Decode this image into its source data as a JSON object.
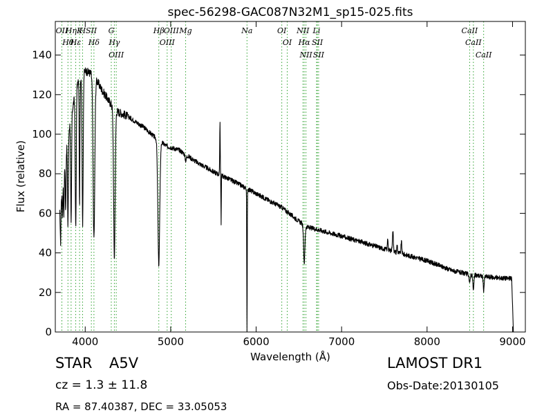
{
  "chart_data": {
    "type": "line",
    "title": "spec-56298-GAC087N32M1_sp15-025.fits",
    "xlabel": "Wavelength (Å)",
    "ylabel": "Flux (relative)",
    "xlim": [
      3650,
      9150
    ],
    "ylim": [
      0,
      157
    ],
    "x_ticks": [
      4000,
      5000,
      6000,
      7000,
      8000,
      9000
    ],
    "y_ticks": [
      0,
      20,
      40,
      60,
      80,
      100,
      120,
      140
    ],
    "grid": false,
    "line_color": "#000000",
    "marker_color": "#2ca02c",
    "spectral_lines": [
      {
        "label": "OII",
        "wavelength": 3727
      },
      {
        "label": "Hθ",
        "wavelength": 3798
      },
      {
        "label": "Hη",
        "wavelength": 3835
      },
      {
        "label": "Hε",
        "wavelength": 3889
      },
      {
        "label": "K",
        "wavelength": 3934
      },
      {
        "label": "H",
        "wavelength": 3969
      },
      {
        "label": "SII",
        "wavelength": 4072
      },
      {
        "label": "Hδ",
        "wavelength": 4102
      },
      {
        "label": "G",
        "wavelength": 4305
      },
      {
        "label": "Hγ",
        "wavelength": 4341
      },
      {
        "label": "OIII",
        "wavelength": 4363
      },
      {
        "label": "Hβ",
        "wavelength": 4861
      },
      {
        "label": "OIII",
        "wavelength": 4959
      },
      {
        "label": "OIII",
        "wavelength": 5007
      },
      {
        "label": "Mg",
        "wavelength": 5175
      },
      {
        "label": "Na",
        "wavelength": 5893
      },
      {
        "label": "OI",
        "wavelength": 6300
      },
      {
        "label": "OI",
        "wavelength": 6364
      },
      {
        "label": "NII",
        "wavelength": 6548
      },
      {
        "label": "Hα",
        "wavelength": 6563
      },
      {
        "label": "NII",
        "wavelength": 6583
      },
      {
        "label": "Li",
        "wavelength": 6707
      },
      {
        "label": "SII",
        "wavelength": 6716
      },
      {
        "label": "SII",
        "wavelength": 6731
      },
      {
        "label": "CaII",
        "wavelength": 8498
      },
      {
        "label": "CaII",
        "wavelength": 8542
      },
      {
        "label": "CaII",
        "wavelength": 8662
      }
    ],
    "continuum": [
      [
        3700,
        60
      ],
      [
        3800,
        100
      ],
      [
        3900,
        125
      ],
      [
        4000,
        132
      ],
      [
        4100,
        130
      ],
      [
        4200,
        122
      ],
      [
        4350,
        112
      ],
      [
        4500,
        109
      ],
      [
        4600,
        106
      ],
      [
        4700,
        103
      ],
      [
        4800,
        99
      ],
      [
        4950,
        94
      ],
      [
        5100,
        92
      ],
      [
        5300,
        86
      ],
      [
        5500,
        81
      ],
      [
        5700,
        77
      ],
      [
        6000,
        70
      ],
      [
        6300,
        63
      ],
      [
        6500,
        56
      ],
      [
        6600,
        53
      ],
      [
        6700,
        52
      ],
      [
        7000,
        48.5
      ],
      [
        7500,
        42
      ],
      [
        8000,
        36
      ],
      [
        8300,
        31
      ],
      [
        8500,
        29
      ],
      [
        8800,
        27.5
      ],
      [
        8990,
        27
      ]
    ],
    "absorption_features": [
      [
        3712,
        20,
        4
      ],
      [
        3734,
        15,
        4
      ],
      [
        3750,
        20,
        4
      ],
      [
        3771,
        28,
        4
      ],
      [
        3798,
        45,
        5
      ],
      [
        3835,
        55,
        5
      ],
      [
        3889,
        70,
        6
      ],
      [
        3934,
        65,
        4
      ],
      [
        3970,
        75,
        6
      ],
      [
        4102,
        82,
        10
      ],
      [
        4341,
        75,
        9
      ],
      [
        4861,
        63,
        11
      ],
      [
        5176,
        3,
        8
      ],
      [
        5590,
        25,
        2
      ],
      [
        5893,
        75,
        2.5
      ],
      [
        6563,
        19,
        8
      ],
      [
        8498,
        5,
        5
      ],
      [
        8542,
        8,
        6
      ],
      [
        8662,
        7,
        6
      ]
    ],
    "emission_features": [
      [
        5577,
        27,
        3
      ],
      [
        7540,
        6,
        4
      ],
      [
        7600,
        10,
        6
      ],
      [
        7650,
        4,
        4
      ],
      [
        7700,
        6,
        5
      ]
    ],
    "cutoff_start": 8990,
    "cutoff_end": 9010
  },
  "info": {
    "object_type": "STAR",
    "subclass": "A5V",
    "cz": "cz = 1.3 ± 11.8",
    "coords": "RA = 87.40387, DEC = 33.05053",
    "survey": "LAMOST DR1",
    "obs_date": "Obs-Date:20130105"
  }
}
